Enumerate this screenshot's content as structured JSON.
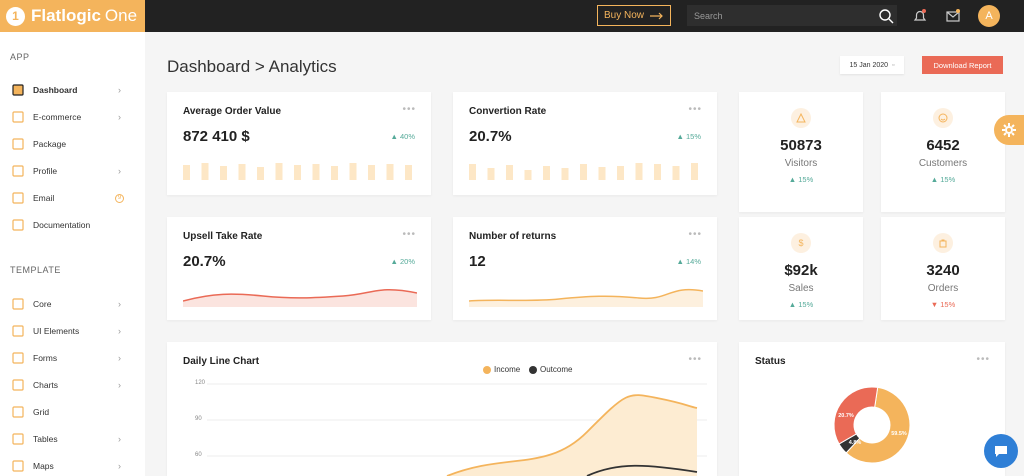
{
  "brand": {
    "name": "Flatlogic",
    "name2": "One",
    "mark": "1",
    "color": "#f4b45c"
  },
  "topbar": {
    "buy_now": "Buy Now",
    "search_placeholder": "Search",
    "avatar": "A"
  },
  "sidebar": {
    "app_label": "APP",
    "template_label": "TEMPLATE",
    "app_items": [
      {
        "label": "Dashboard",
        "icon": "dashboard-icon",
        "chevron": true,
        "active": true
      },
      {
        "label": "E-commerce",
        "icon": "cart-icon",
        "chevron": true
      },
      {
        "label": "Package",
        "icon": "package-icon",
        "chevron": false
      },
      {
        "label": "Profile",
        "icon": "profile-icon",
        "chevron": true
      },
      {
        "label": "Email",
        "icon": "email-icon",
        "badge": "9"
      },
      {
        "label": "Documentation",
        "icon": "documentation-icon",
        "chevron": false
      }
    ],
    "template_items": [
      {
        "label": "Core",
        "icon": "core-icon",
        "chevron": true
      },
      {
        "label": "UI Elements",
        "icon": "layers-icon",
        "chevron": true
      },
      {
        "label": "Forms",
        "icon": "forms-icon",
        "chevron": true
      },
      {
        "label": "Charts",
        "icon": "charts-icon",
        "chevron": true
      },
      {
        "label": "Grid",
        "icon": "grid-icon",
        "chevron": false
      },
      {
        "label": "Tables",
        "icon": "tables-icon",
        "chevron": true
      },
      {
        "label": "Maps",
        "icon": "maps-icon",
        "chevron": true
      }
    ]
  },
  "page": {
    "breadcrumb": "Dashboard > Analytics",
    "date": "15 Jan 2020",
    "download": "Download Report"
  },
  "cards": {
    "aov": {
      "title": "Average Order Value",
      "value": "872 410 $",
      "delta": "▲ 40%"
    },
    "conv": {
      "title": "Convertion Rate",
      "value": "20.7%",
      "delta": "▲ 15%"
    },
    "upsell": {
      "title": "Upsell Take Rate",
      "value": "20.7%",
      "delta": "▲ 20%"
    },
    "returns": {
      "title": "Number of returns",
      "value": "12",
      "delta": "▲ 14%"
    }
  },
  "mini": {
    "visitors": {
      "value": "50873",
      "label": "Visitors",
      "delta": "▲ 15%",
      "icon": "warning-icon"
    },
    "customers": {
      "value": "6452",
      "label": "Customers",
      "delta": "▲ 15%",
      "icon": "smile-icon"
    },
    "sales": {
      "value": "$92k",
      "label": "Sales",
      "delta": "▲ 15%",
      "icon": "dollar-icon"
    },
    "orders": {
      "value": "3240",
      "label": "Orders",
      "delta": "▼ 15%",
      "icon": "bag-icon"
    }
  },
  "daily": {
    "title": "Daily Line Chart",
    "legend_income": "Income",
    "legend_outcome": "Outcome",
    "ticks": [
      "120",
      "90",
      "60"
    ]
  },
  "status": {
    "title": "Status",
    "labels": [
      "20.7%",
      "4.8%",
      "59.5%"
    ]
  },
  "colors": {
    "accent": "#f4b45c",
    "red": "#ea6a56",
    "dark": "#222222",
    "green": "#55aa99"
  }
}
